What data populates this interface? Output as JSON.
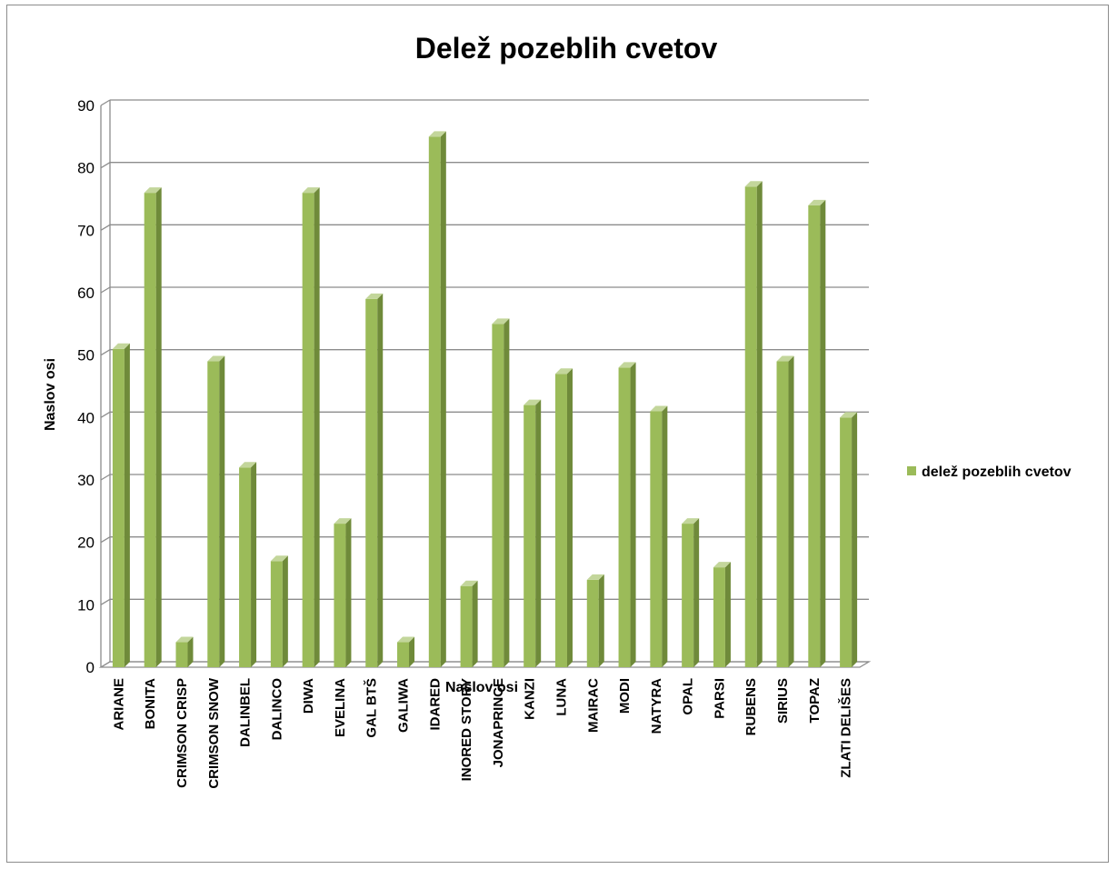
{
  "chart_data": {
    "type": "bar",
    "title": "Delež pozeblih cvetov",
    "xlabel": "Naslov osi",
    "ylabel": "Naslov osi",
    "ylim": [
      0,
      90
    ],
    "yticks": [
      0,
      10,
      20,
      30,
      40,
      50,
      60,
      70,
      80,
      90
    ],
    "grid": true,
    "legend_position": "right",
    "categories": [
      "ARIANE",
      "BONITA",
      "CRIMSON CRISP",
      "CRIMSON SNOW",
      "DALINBEL",
      "DALINCO",
      "DIWA",
      "EVELINA",
      "GAL BTŠ",
      "GALIWA",
      "IDARED",
      "INORED STORY",
      "JONAPRINCE",
      "KANZI",
      "LUNA",
      "MAIRAC",
      "MODI",
      "NATYRA",
      "OPAL",
      "PARSI",
      "RUBENS",
      "SIRIUS",
      "TOPAZ",
      "ZLATI DELIŠES"
    ],
    "series": [
      {
        "name": "delež pozeblih cvetov",
        "color": "#9bbb59",
        "values": [
          51,
          76,
          4,
          49,
          32,
          17,
          76,
          23,
          59,
          4,
          85,
          13,
          55,
          42,
          47,
          14,
          48,
          41,
          23,
          16,
          77,
          49,
          74,
          40
        ]
      }
    ]
  }
}
